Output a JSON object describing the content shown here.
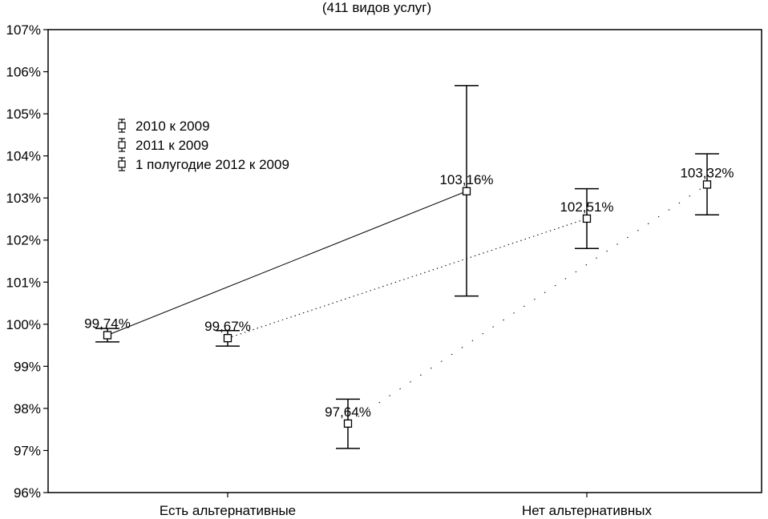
{
  "chart_data": {
    "type": "line",
    "subtitle": "(411 видов услуг)",
    "categories": [
      "Есть альтернативные",
      "Нет альтернативных"
    ],
    "y_ticks": [
      "96%",
      "97%",
      "98%",
      "99%",
      "100%",
      "101%",
      "102%",
      "103%",
      "104%",
      "105%",
      "106%",
      "107%"
    ],
    "ylim": [
      96,
      107
    ],
    "grid": false,
    "legend_position": "top-left",
    "series": [
      {
        "name": "2010 к 2009",
        "line_style": "solid",
        "points": [
          {
            "category": "Есть альтернативные",
            "value": 99.74,
            "err_low": 99.58,
            "err_high": 99.9,
            "label": "99,74%"
          },
          {
            "category": "Нет альтернативных",
            "value": 103.16,
            "err_low": 100.67,
            "err_high": 105.67,
            "label": "103,16%"
          }
        ]
      },
      {
        "name": "2011 к 2009",
        "line_style": "dotted",
        "points": [
          {
            "category": "Есть альтернативные",
            "value": 99.67,
            "err_low": 99.48,
            "err_high": 99.85,
            "label": "99,67%"
          },
          {
            "category": "Нет альтернативных",
            "value": 102.51,
            "err_low": 101.8,
            "err_high": 103.22,
            "label": "102,51%"
          }
        ]
      },
      {
        "name": "1 полугодие 2012 к 2009",
        "line_style": "dashed",
        "points": [
          {
            "category": "Есть альтернативные",
            "value": 97.64,
            "err_low": 97.05,
            "err_high": 98.22,
            "label": "97,64%"
          },
          {
            "category": "Нет альтернативных",
            "value": 103.32,
            "err_low": 102.6,
            "err_high": 104.05,
            "label": "103,32%"
          }
        ]
      }
    ]
  }
}
